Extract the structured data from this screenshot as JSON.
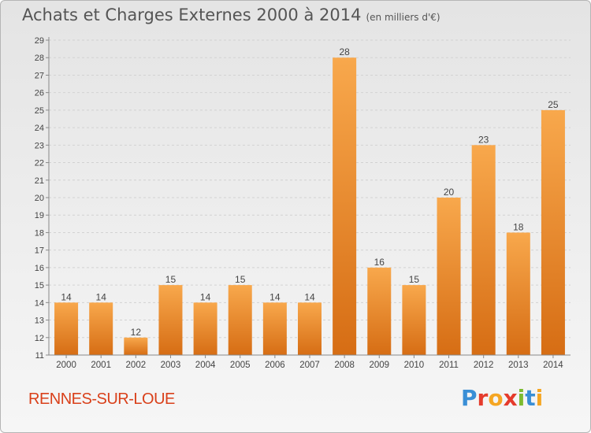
{
  "header": {
    "title": "Achats et Charges Externes 2000 à 2014",
    "subtitle": "(en milliers d'€)"
  },
  "footer": {
    "city": "RENNES-SUR-LOUE",
    "logo_letters": [
      "P",
      "r",
      "o",
      "x",
      "i",
      "t",
      "i"
    ],
    "logo_colors": [
      "#3a8fd6",
      "#e53b2c",
      "#f5a623",
      "#e53b2c",
      "#7dbb2f",
      "#3a8fd6",
      "#f5a623"
    ]
  },
  "chart_data": {
    "type": "bar",
    "title": "Achats et Charges Externes 2000 à 2014",
    "subtitle": "(en milliers d'€)",
    "categories": [
      "2000",
      "2001",
      "2002",
      "2003",
      "2004",
      "2005",
      "2006",
      "2007",
      "2008",
      "2009",
      "2010",
      "2011",
      "2012",
      "2013",
      "2014"
    ],
    "values": [
      14,
      14,
      12,
      15,
      14,
      15,
      14,
      14,
      28,
      16,
      15,
      20,
      23,
      18,
      25
    ],
    "ylim": [
      11,
      29
    ],
    "yticks": [
      11,
      12,
      13,
      14,
      15,
      16,
      17,
      18,
      19,
      20,
      21,
      22,
      23,
      24,
      25,
      26,
      27,
      28,
      29
    ],
    "grid": true,
    "bar_color": "#f39c3a",
    "xlabel": "",
    "ylabel": ""
  }
}
